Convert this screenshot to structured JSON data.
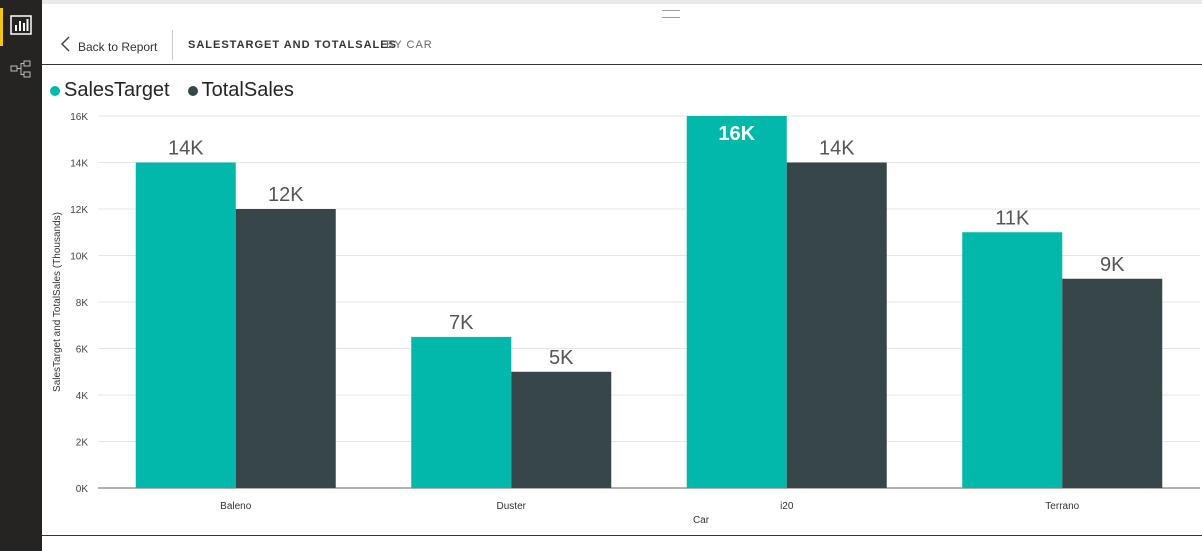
{
  "sidebar": {
    "items": [
      {
        "icon": "report-chart-icon",
        "active": true
      },
      {
        "icon": "hierarchy-icon",
        "active": false
      }
    ]
  },
  "header": {
    "back_label": "Back to Report",
    "title": "SALESTARGET AND TOTALSALES",
    "subtitle": "BY CAR"
  },
  "colors": {
    "sales_target": "#01b8aa",
    "total_sales": "#374649",
    "sidebar_bg": "#252423",
    "accent": "#f2c811"
  },
  "chart_data": {
    "type": "bar",
    "categories": [
      "Baleno",
      "Duster",
      "i20",
      "Terrano"
    ],
    "series": [
      {
        "name": "SalesTarget",
        "values": [
          14000,
          6500,
          16000,
          11000
        ],
        "labels": [
          "14K",
          "7K",
          "16K",
          "11K"
        ]
      },
      {
        "name": "TotalSales",
        "values": [
          12000,
          5000,
          14000,
          9000
        ],
        "labels": [
          "12K",
          "5K",
          "14K",
          "9K"
        ]
      }
    ],
    "xlabel": "Car",
    "ylabel": "SalesTarget and TotalSales (Thousands)",
    "ylim": [
      0,
      16000
    ],
    "yticks": [
      0,
      2000,
      4000,
      6000,
      8000,
      10000,
      12000,
      14000,
      16000
    ],
    "ytick_labels": [
      "0K",
      "2K",
      "4K",
      "6K",
      "8K",
      "10K",
      "12K",
      "14K",
      "16K"
    ],
    "grid": true,
    "legend": "top-left"
  }
}
